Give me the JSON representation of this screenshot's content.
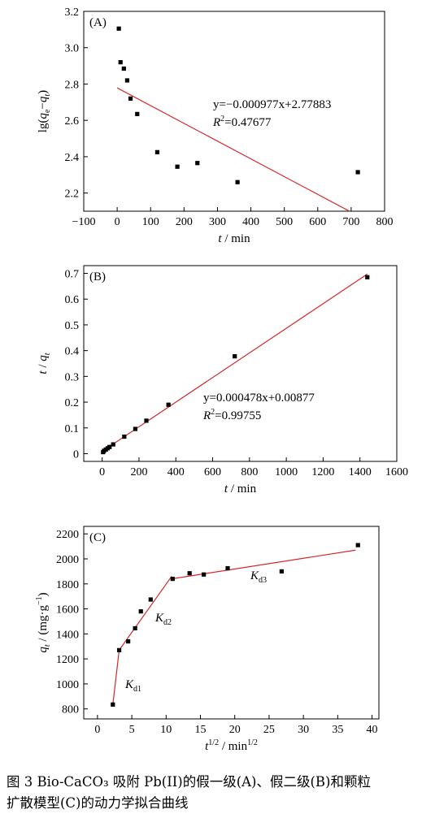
{
  "chart_data": [
    {
      "type": "scatter",
      "panel_label": "(A)",
      "ylabel_tokens": [
        "lg(",
        "q",
        "e",
        "−",
        "q",
        "t",
        ")"
      ],
      "xlabel_tokens": [
        "t",
        " / min"
      ],
      "xlim": [
        -100,
        800
      ],
      "ylim": [
        2.1,
        3.2
      ],
      "xticks": [
        -100,
        0,
        100,
        200,
        300,
        400,
        500,
        600,
        700,
        800
      ],
      "xtick_labels": [
        "−100",
        "0",
        "100",
        "200",
        "300",
        "400",
        "500",
        "600",
        "700",
        "800"
      ],
      "yticks": [
        2.2,
        2.4,
        2.6,
        2.8,
        3.0,
        3.2
      ],
      "ytick_labels": [
        "2.2",
        "2.4",
        "2.6",
        "2.8",
        "3.0",
        "3.2"
      ],
      "points": [
        {
          "x": 5,
          "y": 3.105
        },
        {
          "x": 10,
          "y": 2.92
        },
        {
          "x": 20,
          "y": 2.885
        },
        {
          "x": 30,
          "y": 2.82
        },
        {
          "x": 40,
          "y": 2.72
        },
        {
          "x": 60,
          "y": 2.635
        },
        {
          "x": 120,
          "y": 2.425
        },
        {
          "x": 180,
          "y": 2.345
        },
        {
          "x": 240,
          "y": 2.365
        },
        {
          "x": 360,
          "y": 2.26
        },
        {
          "x": 720,
          "y": 2.315
        }
      ],
      "fit_lines": [
        {
          "x": [
            0,
            694
          ],
          "y": [
            2.7788,
            2.1008
          ]
        }
      ],
      "equation": "y=−0.000977x+2.77883",
      "r2_value": "=0.47677",
      "grid": false
    },
    {
      "type": "scatter",
      "panel_label": "(B)",
      "ylabel_tokens": [
        "t",
        " / ",
        "q",
        "t"
      ],
      "xlabel_tokens": [
        "t",
        " / min"
      ],
      "xlim": [
        -100,
        1600
      ],
      "ylim": [
        -0.03,
        0.73
      ],
      "xticks": [
        0,
        200,
        400,
        600,
        800,
        1000,
        1200,
        1400,
        1600
      ],
      "xtick_labels": [
        "0",
        "200",
        "400",
        "600",
        "800",
        "1000",
        "1200",
        "1400",
        "1600"
      ],
      "yticks": [
        0,
        0.1,
        0.2,
        0.3,
        0.4,
        0.5,
        0.6,
        0.7
      ],
      "ytick_labels": [
        "0",
        "0.1",
        "0.2",
        "0.3",
        "0.4",
        "0.5",
        "0.6",
        "0.7"
      ],
      "points": [
        {
          "x": 5,
          "y": 0.006
        },
        {
          "x": 10,
          "y": 0.011
        },
        {
          "x": 20,
          "y": 0.016
        },
        {
          "x": 30,
          "y": 0.021
        },
        {
          "x": 40,
          "y": 0.026
        },
        {
          "x": 60,
          "y": 0.036
        },
        {
          "x": 120,
          "y": 0.066
        },
        {
          "x": 180,
          "y": 0.096
        },
        {
          "x": 240,
          "y": 0.128
        },
        {
          "x": 360,
          "y": 0.19
        },
        {
          "x": 720,
          "y": 0.378
        },
        {
          "x": 1440,
          "y": 0.685
        }
      ],
      "fit_lines": [
        {
          "x": [
            0,
            1440
          ],
          "y": [
            0.00877,
            0.6971
          ]
        }
      ],
      "equation": "y=0.000478x+0.00877",
      "r2_value": "=0.99755",
      "grid": false
    },
    {
      "type": "scatter",
      "panel_label": "(C)",
      "ylabel_tokens": [
        "q",
        "t",
        " / (mg·g",
        "−1",
        ")"
      ],
      "xlabel_tokens": [
        "t",
        "1/2",
        " / min",
        "1/2"
      ],
      "xlim": [
        -2,
        41
      ],
      "ylim": [
        720,
        2260
      ],
      "xticks": [
        0,
        5,
        10,
        15,
        20,
        25,
        30,
        35,
        40
      ],
      "xtick_labels": [
        "0",
        "5",
        "10",
        "15",
        "20",
        "25",
        "30",
        "35",
        "40"
      ],
      "yticks": [
        800,
        1000,
        1200,
        1400,
        1600,
        1800,
        2000,
        2200
      ],
      "ytick_labels": [
        "800",
        "1000",
        "1200",
        "1400",
        "1600",
        "1800",
        "2000",
        "2200"
      ],
      "points": [
        {
          "x": 2.24,
          "y": 835
        },
        {
          "x": 3.16,
          "y": 1270
        },
        {
          "x": 4.47,
          "y": 1340
        },
        {
          "x": 5.48,
          "y": 1445
        },
        {
          "x": 6.32,
          "y": 1580
        },
        {
          "x": 7.75,
          "y": 1675
        },
        {
          "x": 10.95,
          "y": 1840
        },
        {
          "x": 13.42,
          "y": 1885
        },
        {
          "x": 15.49,
          "y": 1875
        },
        {
          "x": 18.97,
          "y": 1925
        },
        {
          "x": 26.83,
          "y": 1900
        },
        {
          "x": 37.95,
          "y": 2110
        }
      ],
      "fit_lines": [
        {
          "x": [
            2.24,
            3.16
          ],
          "y": [
            835,
            1270
          ]
        },
        {
          "x": [
            3.16,
            10.8
          ],
          "y": [
            1270,
            1860
          ]
        },
        {
          "x": [
            10.8,
            37.6
          ],
          "y": [
            1840,
            2070
          ]
        }
      ],
      "annotations": [
        {
          "base": "K",
          "sub": "d1"
        },
        {
          "base": "K",
          "sub": "d2"
        },
        {
          "base": "K",
          "sub": "d3"
        }
      ],
      "grid": false
    }
  ],
  "colors": {
    "fit_line": "#d62728",
    "marker": "#000000",
    "axis": "#000000"
  },
  "caption": {
    "line1": "图 3  Bio-CaCO₃ 吸附 Pb(II)的假一级(A)、假二级(B)和颗粒",
    "line2": "扩散模型(C)的动力学拟合曲线"
  }
}
